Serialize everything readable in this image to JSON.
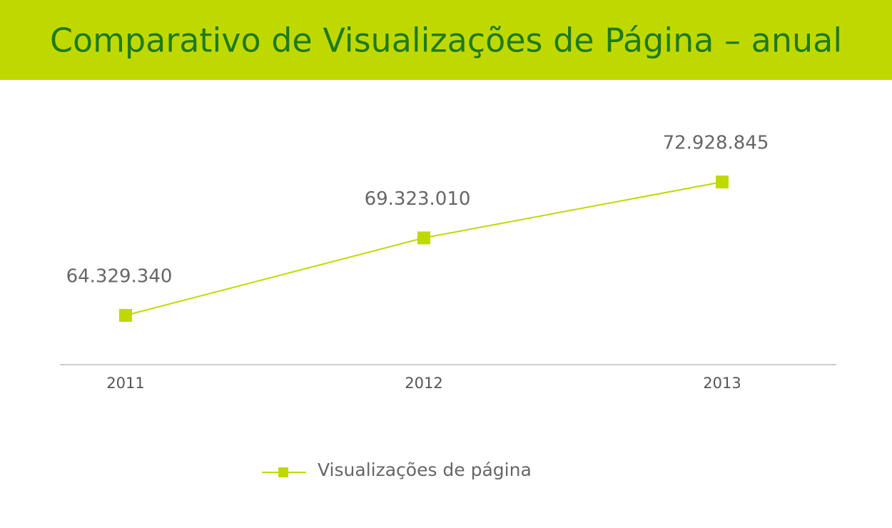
{
  "chart_data": {
    "type": "line",
    "title": "Comparativo de Visualizações de Página – anual",
    "categories": [
      "2011",
      "2012",
      "2013"
    ],
    "series": [
      {
        "name": "Visualizações de página",
        "color": "#bfd900",
        "values": [
          64329340,
          69323010,
          72928845
        ],
        "value_labels": [
          "64.329.340",
          "69.323.010",
          "72.928.845"
        ]
      }
    ]
  }
}
